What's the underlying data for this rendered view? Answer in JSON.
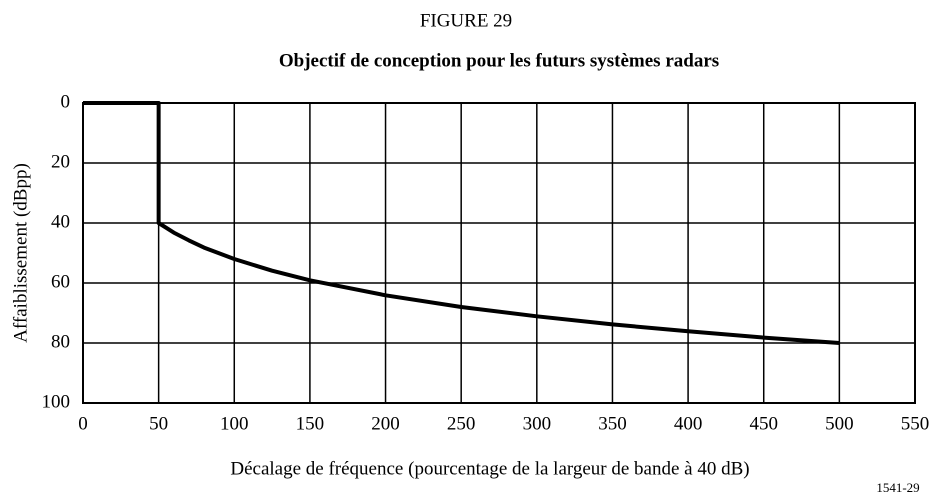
{
  "chart_data": {
    "type": "line",
    "figure_label": "FIGURE 29",
    "title": "Objectif de conception pour les futurs systèmes radars",
    "xlabel": "Décalage de fréquence (pourcentage de la largeur de bande à 40 dB)",
    "ylabel": "Affaiblissement (dBpp)",
    "code": "1541-29",
    "x": [
      0,
      50,
      50,
      60,
      70,
      80,
      100,
      125,
      150,
      200,
      250,
      300,
      350,
      400,
      450,
      500
    ],
    "values": [
      0,
      0,
      40,
      43.2,
      45.8,
      48.2,
      52,
      55.9,
      59.1,
      64.1,
      68,
      71.1,
      73.8,
      76.1,
      78.2,
      80
    ],
    "color": "#000000",
    "xlim": [
      0,
      550
    ],
    "xticks": [
      0,
      50,
      100,
      150,
      200,
      250,
      300,
      350,
      400,
      450,
      500,
      550
    ],
    "ylim": [
      100,
      0
    ],
    "yticks": [
      0,
      20,
      40,
      60,
      80,
      100
    ],
    "grid": true
  }
}
